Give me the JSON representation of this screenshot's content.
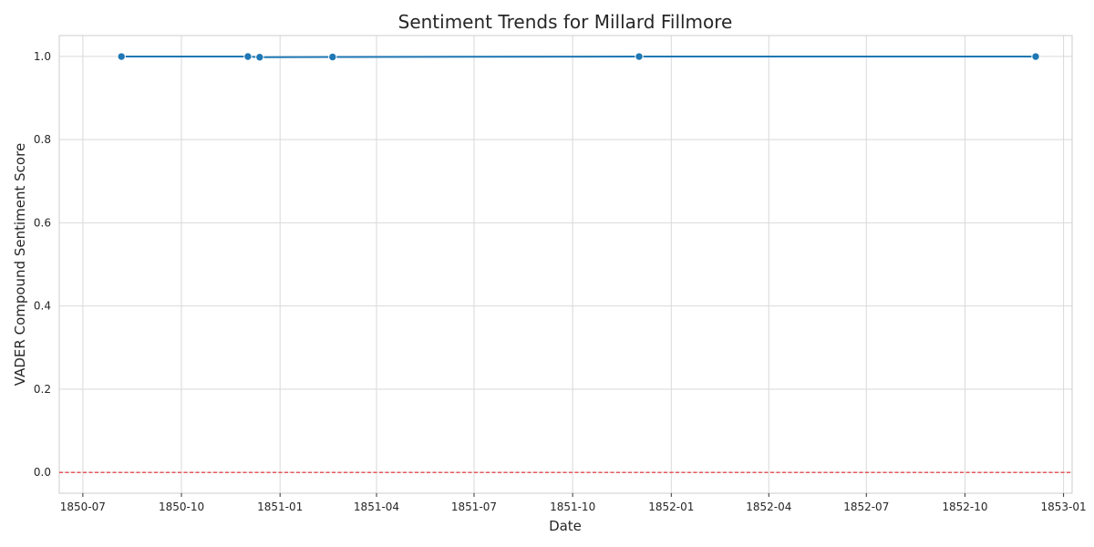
{
  "chart_data": {
    "type": "line",
    "title": "Sentiment Trends for Millard Fillmore",
    "xlabel": "Date",
    "ylabel": "VADER Compound Sentiment Score",
    "x_ticks": [
      "1850-07",
      "1850-10",
      "1851-01",
      "1851-04",
      "1851-07",
      "1851-10",
      "1852-01",
      "1852-04",
      "1852-07",
      "1852-10",
      "1853-01"
    ],
    "y_ticks": [
      "0.0",
      "0.2",
      "0.4",
      "0.6",
      "0.8",
      "1.0"
    ],
    "xlim": [
      "1850-06-09",
      "1853-01-09"
    ],
    "ylim": [
      -0.05,
      1.05
    ],
    "grid": true,
    "series": [
      {
        "color": "#1f77b4",
        "points": [
          {
            "x": "1850-08-06",
            "y": 0.9995
          },
          {
            "x": "1850-12-02",
            "y": 0.9996
          },
          {
            "x": "1850-12-13",
            "y": 0.998
          },
          {
            "x": "1851-02-19",
            "y": 0.9985
          },
          {
            "x": "1851-12-02",
            "y": 0.9995
          },
          {
            "x": "1852-12-06",
            "y": 0.9995
          }
        ]
      }
    ],
    "reference_line": {
      "y": 0.0,
      "color": "#e3242b",
      "style": "dashed"
    }
  }
}
